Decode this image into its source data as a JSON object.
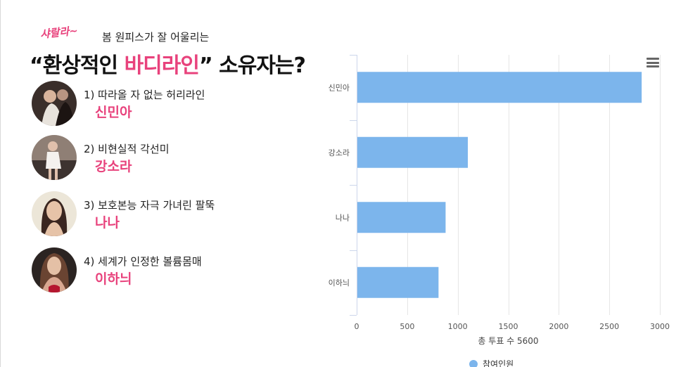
{
  "header": {
    "kicker_script": "샤랄라~",
    "kicker_text": "봄 원피스가 잘 어울리는",
    "headline_open": "“환상적인 ",
    "headline_highlight": "바디라인",
    "headline_close": "” 소유자는?"
  },
  "candidates": [
    {
      "desc": "1) 따라올 자 없는 허리라인",
      "name": "신민아"
    },
    {
      "desc": "2) 비현실적 각선미",
      "name": "강소라"
    },
    {
      "desc": "3) 보호본능 자극 가녀린 팔뚝",
      "name": "나나"
    },
    {
      "desc": "4) 세계가 인정한 볼륨몸매",
      "name": "이하늬"
    }
  ],
  "chart_data": {
    "type": "bar",
    "orientation": "horizontal",
    "categories": [
      "신민아",
      "강소라",
      "나나",
      "이하늬"
    ],
    "series": [
      {
        "name": "참여인원",
        "values": [
          2820,
          1100,
          880,
          810
        ],
        "color": "#7cb5ec"
      }
    ],
    "xlabel": "총 투표 수 5600",
    "xlim": [
      0,
      3000
    ],
    "xticks": [
      0,
      500,
      1000,
      1500,
      2000,
      2500,
      3000
    ],
    "grid": true,
    "legend": "bottom-center"
  },
  "icons": {
    "menu": "hamburger-menu-icon"
  }
}
